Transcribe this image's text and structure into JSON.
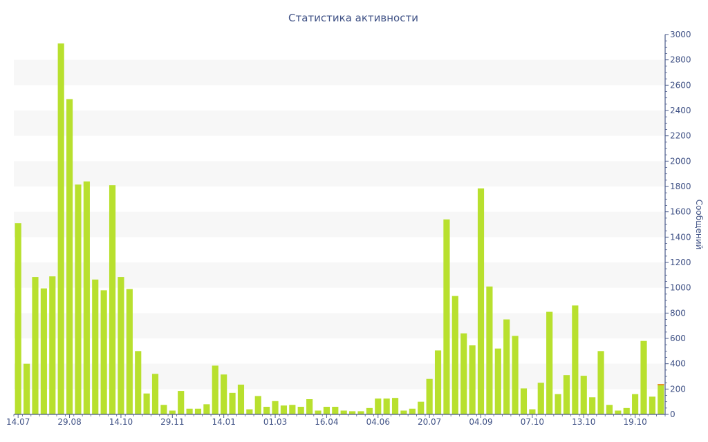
{
  "chart_data": {
    "type": "bar",
    "title": "Статистика активности",
    "xlabel": "",
    "ylabel": "Сообщений",
    "y_axis_side": "right",
    "ylim": [
      0,
      3000
    ],
    "y_ticks": [
      0,
      200,
      400,
      600,
      800,
      1000,
      1200,
      1400,
      1600,
      1800,
      2000,
      2200,
      2400,
      2600,
      2800,
      3000
    ],
    "x_tick_labels": [
      {
        "label": "14.07",
        "index": 0
      },
      {
        "label": "29.08",
        "index": 6
      },
      {
        "label": "14.10",
        "index": 12
      },
      {
        "label": "29.11",
        "index": 18
      },
      {
        "label": "14.01",
        "index": 24
      },
      {
        "label": "01.03",
        "index": 30
      },
      {
        "label": "16.04",
        "index": 36
      },
      {
        "label": "04.06",
        "index": 42
      },
      {
        "label": "20.07",
        "index": 48
      },
      {
        "label": "04.09",
        "index": 54
      },
      {
        "label": "07.10",
        "index": 60
      },
      {
        "label": "13.10",
        "index": 66
      },
      {
        "label": "19.10",
        "index": 72
      }
    ],
    "grid": "horizontal bands",
    "colors": {
      "bar": "#b8e02e",
      "last_bar_top": "#e8902a",
      "text": "#3f5185",
      "axis": "#4a5a8a",
      "band": "#f7f7f7"
    },
    "values": [
      1510,
      400,
      1085,
      995,
      1090,
      2930,
      2490,
      1815,
      1840,
      1065,
      980,
      1810,
      1085,
      990,
      500,
      165,
      320,
      75,
      30,
      185,
      45,
      45,
      80,
      385,
      315,
      170,
      235,
      40,
      145,
      60,
      105,
      70,
      75,
      60,
      120,
      30,
      60,
      60,
      30,
      25,
      25,
      50,
      125,
      125,
      130,
      30,
      45,
      100,
      280,
      505,
      1540,
      935,
      640,
      545,
      1785,
      1010,
      520,
      750,
      620,
      205,
      40,
      250,
      810,
      160,
      310,
      860,
      305,
      135,
      500,
      75,
      30,
      50,
      160,
      580,
      140,
      240
    ]
  }
}
